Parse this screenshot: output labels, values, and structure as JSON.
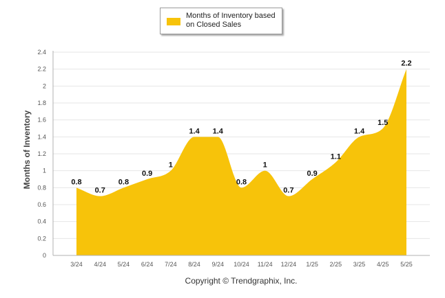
{
  "chart_data": {
    "type": "area",
    "title": "",
    "xlabel": "",
    "ylabel": "Months of Inventory",
    "legend": {
      "position": "top-center",
      "entries": [
        "Months of Inventory based on Closed Sales"
      ]
    },
    "grid": true,
    "ylim": [
      0,
      2.4
    ],
    "y_ticks": [
      "0",
      "0.2",
      "0.4",
      "0.6",
      "0.8",
      "1",
      "1.2",
      "1.4",
      "1.6",
      "1.8",
      "2",
      "2.2",
      "2.4"
    ],
    "categories": [
      "3/24",
      "4/24",
      "5/24",
      "6/24",
      "7/24",
      "8/24",
      "9/24",
      "10/24",
      "11/24",
      "12/24",
      "1/25",
      "2/25",
      "3/25",
      "4/25",
      "5/25"
    ],
    "series": [
      {
        "name": "Months of Inventory based on Closed Sales",
        "color": "#F7C30A",
        "values": [
          0.8,
          0.7,
          0.8,
          0.9,
          1,
          1.4,
          1.4,
          0.8,
          1,
          0.7,
          0.9,
          1.1,
          1.4,
          1.5,
          2.2
        ],
        "labels": [
          "0.8",
          "0.7",
          "0.8",
          "0.9",
          "1",
          "1.4",
          "1.4",
          "0.8",
          "1",
          "0.7",
          "0.9",
          "1.1",
          "1.4",
          "1.5",
          "2.2"
        ]
      }
    ]
  },
  "footer": {
    "copyright": "Copyright © Trendgraphix, Inc."
  }
}
